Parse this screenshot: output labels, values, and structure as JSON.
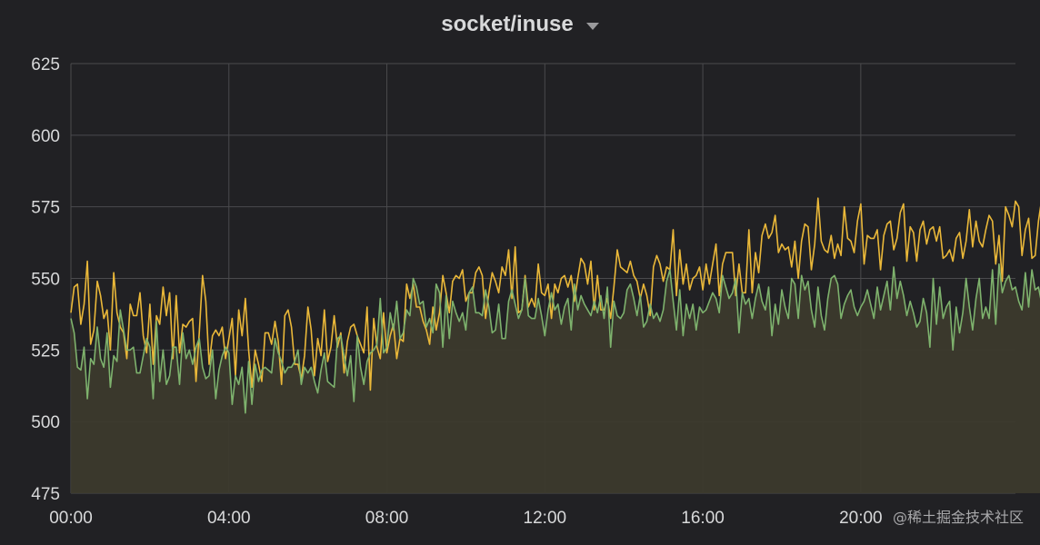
{
  "panel": {
    "title": "socket/inuse",
    "menu_icon": "caret-down-icon"
  },
  "watermark": "@稀土掘金技术社区",
  "colors": {
    "background": "#212124",
    "grid": "#4a4a4d",
    "area_fill": "#3c3a2d",
    "series_green": "#7eb26d",
    "series_yellow": "#eab839",
    "tick_text": "#d8d9da"
  },
  "chart_data": {
    "type": "line",
    "title": "socket/inuse",
    "xlabel": "",
    "ylabel": "",
    "x_ticks": [
      "00:00",
      "04:00",
      "08:00",
      "12:00",
      "16:00",
      "20:00"
    ],
    "y_ticks": [
      475,
      500,
      525,
      550,
      575,
      600,
      625
    ],
    "xlim": [
      "00:00",
      "23:55"
    ],
    "ylim": [
      475,
      625
    ],
    "grid": true,
    "legend": "none",
    "sample_interval_minutes": 5,
    "series": [
      {
        "color": "#eab839",
        "fill_to_zero": false,
        "values": [
          538,
          547,
          548,
          534,
          541,
          556,
          527,
          532,
          549,
          544,
          536,
          539,
          525,
          552,
          538,
          533,
          531,
          522,
          541,
          537,
          537,
          545,
          530,
          524,
          541,
          520,
          537,
          534,
          547,
          537,
          545,
          522,
          544,
          524,
          534,
          533,
          535,
          536,
          514,
          531,
          551,
          542,
          520,
          530,
          532,
          530,
          533,
          522,
          529,
          536,
          516,
          539,
          530,
          543,
          525,
          512,
          525,
          520,
          514,
          531,
          531,
          527,
          535,
          528,
          513,
          537,
          539,
          533,
          520,
          520,
          515,
          523,
          540,
          532,
          516,
          529,
          523,
          539,
          521,
          526,
          537,
          526,
          531,
          517,
          528,
          533,
          534,
          530,
          527,
          524,
          540,
          511,
          536,
          526,
          522,
          538,
          524,
          530,
          534,
          522,
          529,
          528,
          548,
          543,
          548,
          540,
          540,
          535,
          532,
          527,
          540,
          532,
          538,
          551,
          545,
          538,
          549,
          551,
          550,
          553,
          542,
          545,
          545,
          552,
          554,
          551,
          536,
          545,
          552,
          549,
          545,
          554,
          551,
          560,
          543,
          561,
          538,
          539,
          551,
          540,
          543,
          540,
          555,
          545,
          544,
          548,
          536,
          548,
          545,
          550,
          551,
          547,
          551,
          542,
          550,
          557,
          555,
          548,
          556,
          539,
          551,
          539,
          539,
          543,
          536,
          547,
          560,
          554,
          553,
          552,
          556,
          551,
          549,
          543,
          548,
          544,
          537,
          554,
          558,
          555,
          549,
          554,
          553,
          567,
          544,
          560,
          548,
          555,
          546,
          550,
          551,
          554,
          546,
          555,
          548,
          555,
          562,
          544,
          555,
          559,
          559,
          559,
          544,
          555,
          545,
          545,
          567,
          545,
          559,
          552,
          565,
          569,
          564,
          566,
          572,
          559,
          562,
          560,
          561,
          554,
          563,
          550,
          563,
          569,
          568,
          553,
          562,
          578,
          563,
          560,
          559,
          565,
          557,
          562,
          558,
          575,
          564,
          563,
          559,
          570,
          576,
          555,
          565,
          564,
          564,
          567,
          553,
          565,
          569,
          570,
          560,
          564,
          573,
          576,
          556,
          568,
          566,
          556,
          567,
          570,
          562,
          567,
          568,
          563,
          568,
          557,
          558,
          560,
          556,
          564,
          566,
          557,
          563,
          574,
          561,
          570,
          563,
          561,
          567,
          572,
          570,
          555,
          565,
          549,
          575,
          572,
          568,
          577,
          575,
          558,
          567,
          571,
          557,
          558,
          570,
          578,
          563,
          576,
          559,
          573,
          563,
          566,
          555,
          563,
          573,
          563,
          573,
          572,
          566,
          560,
          571,
          550,
          570,
          568,
          577,
          569,
          568,
          574,
          575,
          562,
          569,
          575,
          565,
          573,
          548,
          569,
          564,
          559,
          570,
          566,
          554,
          555,
          560,
          556,
          566,
          543,
          563,
          566,
          545,
          565,
          567,
          557,
          558,
          554,
          551,
          552,
          549,
          563,
          560,
          566,
          561,
          568,
          566,
          562,
          566,
          553,
          569,
          557,
          573,
          545,
          564,
          560,
          561,
          552,
          550,
          555,
          556,
          543,
          552,
          555,
          557,
          551,
          548,
          564,
          553,
          556,
          560,
          558,
          561,
          555,
          554,
          557,
          562,
          563,
          550,
          556,
          559,
          557,
          546,
          552,
          548,
          560,
          547,
          573,
          558,
          557,
          555,
          544,
          564,
          552,
          549,
          560,
          559,
          543,
          567,
          553,
          559,
          553,
          556,
          550,
          542,
          558
        ]
      },
      {
        "color": "#7eb26d",
        "fill_to_zero": true,
        "values": [
          536,
          531,
          519,
          518,
          526,
          508,
          522,
          520,
          533,
          522,
          519,
          531,
          512,
          523,
          521,
          539,
          532,
          525,
          525,
          526,
          517,
          517,
          523,
          529,
          526,
          508,
          535,
          514,
          525,
          513,
          516,
          526,
          526,
          513,
          531,
          522,
          525,
          520,
          526,
          529,
          519,
          515,
          516,
          525,
          508,
          518,
          523,
          526,
          524,
          506,
          516,
          513,
          519,
          503,
          521,
          506,
          520,
          514,
          518,
          519,
          518,
          517,
          529,
          524,
          521,
          517,
          519,
          519,
          521,
          525,
          513,
          519,
          517,
          519,
          514,
          510,
          518,
          524,
          514,
          513,
          512,
          529,
          530,
          523,
          516,
          523,
          507,
          530,
          519,
          513,
          521,
          524,
          525,
          527,
          543,
          524,
          526,
          538,
          532,
          542,
          529,
          531,
          539,
          537,
          550,
          547,
          541,
          542,
          533,
          536,
          531,
          548,
          545,
          526,
          544,
          529,
          542,
          538,
          535,
          538,
          532,
          545,
          547,
          538,
          538,
          537,
          546,
          540,
          531,
          532,
          541,
          529,
          529,
          542,
          546,
          541,
          536,
          539,
          550,
          537,
          536,
          536,
          543,
          537,
          530,
          539,
          545,
          539,
          541,
          534,
          540,
          543,
          532,
          548,
          539,
          544,
          541,
          539,
          537,
          542,
          538,
          544,
          536,
          547,
          526,
          542,
          537,
          536,
          538,
          546,
          548,
          543,
          537,
          544,
          533,
          535,
          541,
          536,
          538,
          535,
          539,
          549,
          553,
          542,
          532,
          546,
          530,
          541,
          536,
          541,
          532,
          540,
          538,
          539,
          542,
          545,
          543,
          538,
          551,
          547,
          543,
          545,
          550,
          531,
          545,
          541,
          543,
          536,
          543,
          548,
          542,
          539,
          547,
          530,
          541,
          534,
          546,
          540,
          536,
          550,
          548,
          536,
          551,
          546,
          549,
          539,
          533,
          547,
          537,
          532,
          543,
          550,
          551,
          548,
          536,
          541,
          544,
          546,
          540,
          537,
          540,
          542,
          546,
          541,
          536,
          547,
          539,
          544,
          549,
          539,
          554,
          543,
          549,
          544,
          537,
          542,
          538,
          533,
          535,
          543,
          538,
          526,
          550,
          534,
          547,
          536,
          540,
          542,
          525,
          540,
          531,
          538,
          550,
          540,
          532,
          543,
          550,
          536,
          540,
          536,
          553,
          534,
          555,
          545,
          549,
          551,
          546,
          547,
          542,
          539,
          552,
          540,
          553,
          546,
          547,
          541,
          544,
          551,
          537,
          546,
          545,
          544,
          549,
          554,
          552,
          557,
          546,
          557,
          545,
          544,
          546,
          548,
          550,
          559,
          558,
          543,
          551,
          551,
          550,
          554,
          548,
          540,
          553,
          551,
          552,
          542,
          556,
          550,
          559,
          549,
          546,
          559,
          537,
          545,
          550,
          552,
          540,
          545,
          539,
          537,
          532,
          533,
          541,
          522,
          546,
          531,
          540,
          526,
          537,
          534,
          532,
          529,
          523,
          533,
          530,
          529,
          532,
          530,
          530,
          525,
          532,
          523,
          520,
          531,
          523,
          527,
          531,
          530,
          530,
          523,
          527,
          542,
          534,
          532,
          533,
          534,
          532,
          538,
          527,
          527,
          536,
          529,
          530,
          518,
          541,
          531,
          527,
          535,
          521,
          530,
          526,
          534,
          523,
          530,
          527,
          532,
          539,
          526,
          533,
          537,
          529,
          528,
          520,
          540,
          526,
          534,
          528,
          534,
          524,
          533,
          526,
          533,
          524,
          518,
          525,
          531,
          528
        ]
      }
    ]
  }
}
